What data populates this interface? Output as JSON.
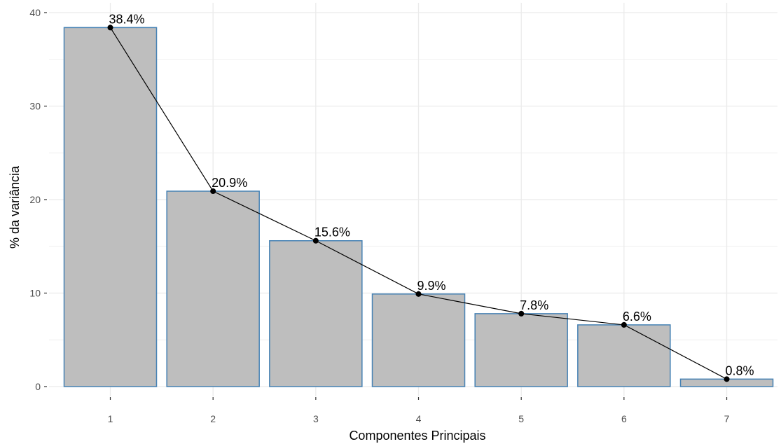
{
  "chart_data": {
    "type": "bar",
    "categories": [
      "1",
      "2",
      "3",
      "4",
      "5",
      "6",
      "7"
    ],
    "values": [
      38.4,
      20.9,
      15.6,
      9.9,
      7.8,
      6.6,
      0.8
    ],
    "data_labels": [
      "38.4%",
      "20.9%",
      "15.6%",
      "9.9%",
      "7.8%",
      "6.6%",
      "0.8%"
    ],
    "overlay": "line with points",
    "title": "",
    "xlabel": "Componentes Principais",
    "ylabel": "% da variância",
    "ylim": [
      0,
      40
    ],
    "yticks": [
      "0",
      "10",
      "20",
      "30",
      "40"
    ],
    "grid": true,
    "legend": "none",
    "colors": {
      "bar_fill": "#bebebe",
      "bar_stroke": "#4682b4",
      "line": "#000000",
      "grid": "#ebebeb"
    }
  }
}
